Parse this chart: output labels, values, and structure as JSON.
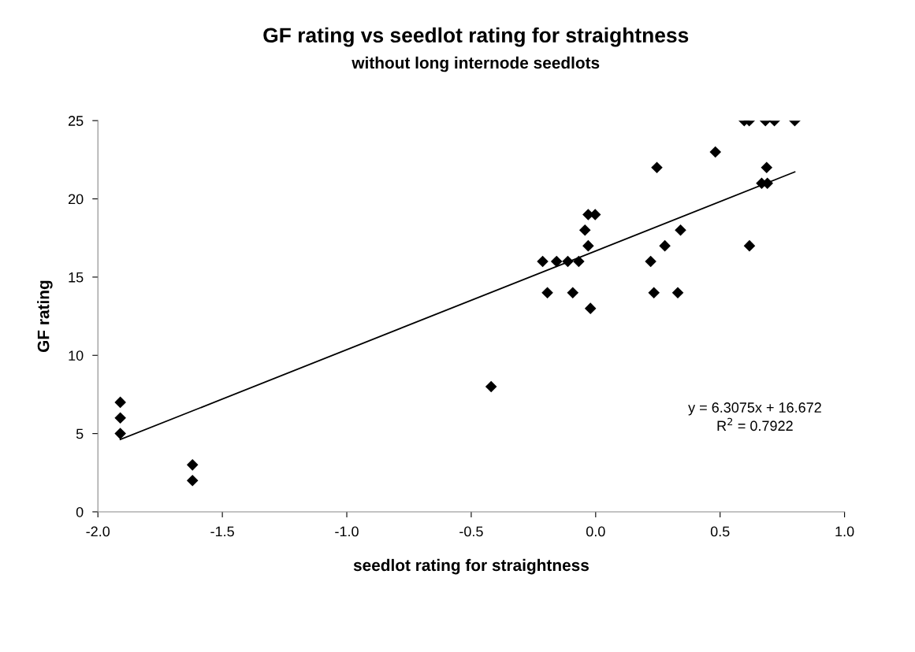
{
  "chart_data": {
    "type": "scatter",
    "title": "GF rating vs seedlot rating for straightness",
    "subtitle": "without long internode seedlots",
    "xlabel": "seedlot rating for straightness",
    "ylabel": "GF rating",
    "xlim": [
      -2.0,
      1.0
    ],
    "xticks": [
      {
        "value": -2.0,
        "label": "-2.0"
      },
      {
        "value": -1.5,
        "label": "-1.5"
      },
      {
        "value": -1.0,
        "label": "-1.0"
      },
      {
        "value": -0.5,
        "label": "-0.5"
      },
      {
        "value": 0.0,
        "label": "0.0"
      },
      {
        "value": 0.5,
        "label": "0.5"
      },
      {
        "value": 1.0,
        "label": "1.0"
      }
    ],
    "ylim": [
      0,
      25
    ],
    "yticks": [
      0,
      5,
      10,
      15,
      20,
      25
    ],
    "grid": false,
    "series": [
      {
        "marker": "diamond",
        "color": "#000000",
        "x": [
          -1.91,
          -1.91,
          -1.91,
          -1.62,
          -1.62,
          -0.42,
          -0.213,
          -0.157,
          -0.112,
          -0.068,
          0.221,
          -0.194,
          -0.092,
          0.234,
          0.33,
          -0.021,
          -0.03,
          0.278,
          0.618,
          -0.043,
          0.341,
          -0.03,
          -0.002,
          0.246,
          0.687,
          0.481,
          0.667,
          0.69,
          0.597,
          0.617,
          0.682,
          0.718,
          0.8
        ],
        "values": [
          7,
          6,
          5,
          3,
          2,
          8,
          16,
          16,
          16,
          16,
          16,
          14,
          14,
          14,
          14,
          13,
          17,
          17,
          17,
          18,
          18,
          19,
          19,
          22,
          22,
          23,
          21,
          21,
          25,
          25,
          25,
          25,
          25
        ]
      },
      {
        "type": "line",
        "marker": "none",
        "color": "#000000",
        "x": [
          -1.91,
          0.8
        ],
        "values": [
          4.62,
          21.72
        ]
      }
    ],
    "annotations": [
      "y = 6.3075x + 16.672\nR$^{2}$ = 0.7922"
    ]
  }
}
